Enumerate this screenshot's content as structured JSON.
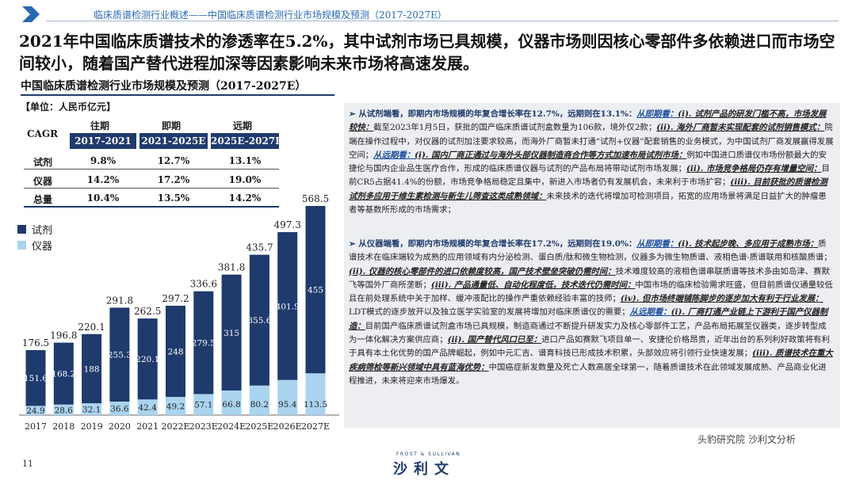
{
  "header": {
    "title": "临床质谱检测行业概述——中国临床质谱检测行业市场规模及预测（2017-2027E）"
  },
  "headline": "2021年中国临床质谱技术的渗透率在5.2%，其中试剂市场已具规模，仪器市场则因核心零部件多依赖进口而市场空间较小，随着国产替代进程加深等因素影响未来市场将高速发展。",
  "subtitle": "中国临床质谱检测行业市场规模及预测（2017-2027E）",
  "unit": "【单位：人民币亿元】",
  "cagr_table": {
    "corner": "CAGR",
    "period_heads": [
      "往期",
      "即期",
      "远期"
    ],
    "columns": [
      "2017-2021",
      "2021-2025E",
      "2025E-2027E"
    ],
    "rows": [
      {
        "label": "试剂",
        "values": [
          "9.8%",
          "12.7%",
          "13.1%"
        ]
      },
      {
        "label": "仪器",
        "values": [
          "14.2%",
          "17.2%",
          "19.0%"
        ]
      },
      {
        "label": "总量",
        "values": [
          "10.4%",
          "13.5%",
          "14.2%"
        ]
      }
    ]
  },
  "legend": {
    "reagent": "试剂",
    "instrument": "仪器"
  },
  "colors": {
    "reagent": "#1f3a6d",
    "instrument": "#a9d3ef",
    "accent": "#2a6ab3"
  },
  "chart_data": {
    "type": "bar",
    "stacked": true,
    "title": "",
    "xlabel": "",
    "ylabel": "",
    "categories": [
      "2017",
      "2018",
      "2019",
      "2020",
      "2021",
      "2022E",
      "2023E",
      "2024E",
      "2025E",
      "2026E",
      "2027E"
    ],
    "series": [
      {
        "name": "仪器",
        "values": [
          24.9,
          28.6,
          32.1,
          36.6,
          42.4,
          49.2,
          57.1,
          66.8,
          80.2,
          95.4,
          113.5
        ]
      },
      {
        "name": "试剂",
        "values": [
          151.6,
          168.2,
          188.0,
          255.3,
          220.1,
          248.0,
          279.5,
          315.0,
          355.6,
          401.9,
          455.0
        ]
      }
    ],
    "totals": [
      176.5,
      196.8,
      220.1,
      291.8,
      262.5,
      297.2,
      336.6,
      381.8,
      435.7,
      497.3,
      568.5
    ],
    "ylim": [
      0,
      580
    ],
    "grid": false,
    "legend": "left"
  },
  "right_panel": {
    "p1": {
      "lead": "从试剂端看，即期内市场规模的年复合增长率在12.7%，远期则在13.1%：",
      "s1": "从即期看：",
      "s2": "(i). 试剂产品的研发门槛不高，市场发展较快：",
      "t1": "截至2023年1月5日，获批的国产临床质谱试剂盒数量为106款，境外仅2款；",
      "s3": "(ii). 海外厂商暂未实现配套的试剂销售模式：",
      "t2": "院端在操作过程中，对仪器的试剂加注要求较高，而海外厂商暂未打通“试剂+仪器”配套销售的业务模式，为中国试剂厂商发展赢得发展空间；",
      "s4": "从远期看：",
      "s5": "(i). 国内厂商正通过与海外头部仪器制造商合作等方式加速布局试剂市场：",
      "t3": "例如中国进口质谱仪市场份额最大的安捷伦与国内企业品生医疗合作，形成的临床质谱仪器与试剂的产品布局将带动试剂市场发展；",
      "s6": "(ii). 市场竞争格局仍存有增量空间：",
      "t4": "目前CR5占据41.4%的份额，市场竞争格局稳定且集中，新进入市场者仍有发展机会，未来利于市场扩容；",
      "s7": "(iii). 目前获批的质谱检测试剂多应用于维生素检测与新生儿筛查这类成熟领域：",
      "t5": "未来技术的迭代将增加可检测项目，拓宽的应用场景将满足日益扩大的肿瘤患者等基数所形成的市场需求；"
    },
    "p2": {
      "lead": "从仪器端看，即期内市场规模的年复合增长率在17.2%，远期则在19.0%：",
      "s1": "从即期看：",
      "s2": "(i). 技术起步晚、多应用于成熟市场：",
      "t1": "质谱技术在临床端较为成熟的应用领域有内分泌检测、蛋白质/肽和微生物检测，仪器多为微生物质谱、液相色谱-质谱联用和核酸质谱；",
      "s3": "(ii). 仪器的核心零部件的进口依赖度较高，国产技术壁垒突破仍需时间：",
      "t2": "技术难度较高的液相色谱串联质谱等技术多由如岛津、赛默飞等国外厂商所垄断；",
      "s4": "(iii). 产品通量低、自动化程度低，技术迭代仍需时间：",
      "t3": "中国市场的临床检验需求旺盛，但目前质谱仪通量较低且在前处理系统中关于加样、缓冲液配比的操作严重依赖经验丰富的技师；",
      "s5": "(iv). 但市场终端铺陈脚步的逐步加大有利于行业发展：",
      "t4": "LDT模式的逐步放开以及独立医学实验室的发展将增加对临床质谱仪的需要；",
      "s6": "从远期看：",
      "s7": "(i). 厂商打通产业链上下游利于国产仪器制造：",
      "t5": "目前国产临床质谱试剂盒市场已具规模，制造商通过不断提升研发实力及核心零部件工艺，产品布局拓展至仪器类，逐步转型成为一体化解决方案供应商；",
      "s8": "(ii). 国产替代风口已至：",
      "t6": "进口产品如赛默飞项目单一、安捷伦价格昂贵，近年出台的系列利好政策将有利于具有本土化优势的国产品牌崛起，例如中元汇吉、谱育科技已形成技术积累，头部效应将引领行业快速发展；",
      "s9": "(iii). 质谱技术在重大疾病筛检等新兴领域中具有蓝海优势：",
      "t7": "中国癌症新发数量及死亡人数高居全球第一，随着质谱技术在此领域发展成熟、产品商业化进程推进，未来将迎来市场爆发。"
    }
  },
  "footer": {
    "page": "11",
    "brand_top": "FROST & SULLIVAN",
    "brand_main": "沙利文",
    "watermark": "头豹研究院 沙利文分析"
  }
}
